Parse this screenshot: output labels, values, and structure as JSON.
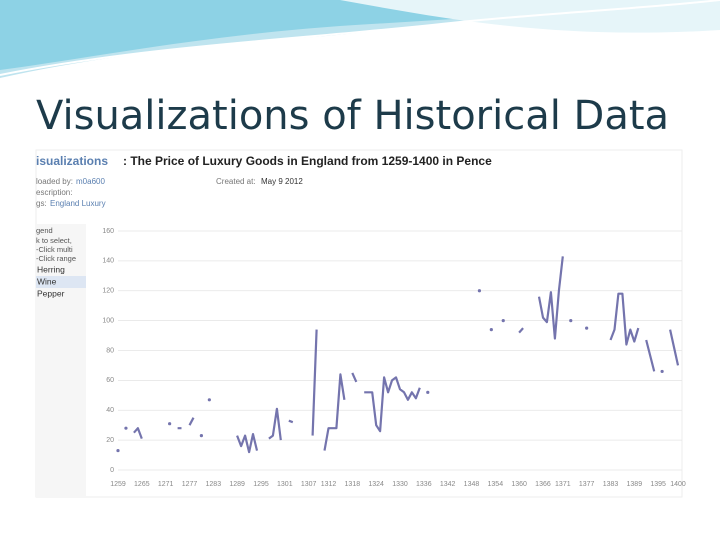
{
  "slide_title": "Visualizations of Historical Data",
  "header": {
    "section": "isualizations",
    "title": ": The Price of Luxury Goods in England from 1259-1400 in Pence",
    "uploaded_label": "loaded by:",
    "uploaded_by": "m0a600",
    "created_label": "Created at:",
    "created": "May 9 2012",
    "description_label": "escription:",
    "tags_label": "gs:",
    "tags": "England Luxury"
  },
  "legend_panel": {
    "heading": "gend",
    "hints": [
      "k to select,",
      "-Click multi",
      "-Click range"
    ],
    "other_entries": [
      "Herring",
      "Pepper"
    ]
  },
  "chart_data": {
    "type": "line",
    "x": [
      1259,
      1260,
      1261,
      1262,
      1263,
      1264,
      1265,
      1266,
      1272,
      1273,
      1274,
      1275,
      1276,
      1277,
      1278,
      1279,
      1280,
      1281,
      1282,
      1283,
      1289,
      1290,
      1291,
      1292,
      1293,
      1294,
      1295,
      1297,
      1298,
      1299,
      1300,
      1301,
      1302,
      1303,
      1304,
      1308,
      1309,
      1310,
      1311,
      1312,
      1314,
      1315,
      1316,
      1317,
      1318,
      1319,
      1320,
      1321,
      1323,
      1324,
      1325,
      1326,
      1327,
      1328,
      1329,
      1330,
      1331,
      1332,
      1333,
      1334,
      1335,
      1336,
      1337,
      1338,
      1350,
      1351,
      1353,
      1354,
      1356,
      1357,
      1360,
      1361,
      1362,
      1365,
      1366,
      1367,
      1368,
      1369,
      1370,
      1371,
      1372,
      1373,
      1375,
      1377,
      1380,
      1383,
      1384,
      1385,
      1386,
      1387,
      1388,
      1389,
      1390,
      1391,
      1392,
      1394,
      1395,
      1396,
      1397,
      1398,
      1400
    ],
    "series": [
      {
        "name": "Wine",
        "color": "#7474ad",
        "values": [
          13,
          null,
          28,
          null,
          25,
          28,
          21,
          null,
          31,
          null,
          28,
          28,
          null,
          30,
          35,
          null,
          23,
          null,
          47,
          null,
          23,
          16,
          23,
          12,
          24,
          13,
          null,
          21,
          23,
          41,
          20,
          null,
          33,
          32,
          null,
          23,
          94,
          null,
          13,
          28,
          28,
          64,
          47,
          null,
          65,
          59,
          null,
          52,
          52,
          30,
          26,
          62,
          52,
          60,
          62,
          54,
          52,
          47,
          52,
          48,
          55,
          null,
          52,
          null,
          120,
          null,
          94,
          null,
          100,
          null,
          92,
          95,
          null,
          116,
          102,
          99,
          119,
          88,
          120,
          143,
          null,
          100,
          null,
          95,
          null,
          87,
          94,
          118,
          118,
          84,
          94,
          86,
          95,
          null,
          87,
          66,
          null,
          66,
          null,
          94,
          70
        ]
      }
    ],
    "xlim": [
      1259,
      1400
    ],
    "xticks": [
      1259,
      1265,
      1271,
      1277,
      1283,
      1289,
      1295,
      1301,
      1307,
      1312,
      1318,
      1324,
      1330,
      1336,
      1342,
      1348,
      1354,
      1360,
      1366,
      1371,
      1377,
      1383,
      1389,
      1395,
      1400
    ],
    "ylim": [
      0,
      160
    ],
    "yticks": [
      0,
      20,
      40,
      60,
      80,
      100,
      120,
      140,
      160
    ],
    "grid": true
  }
}
